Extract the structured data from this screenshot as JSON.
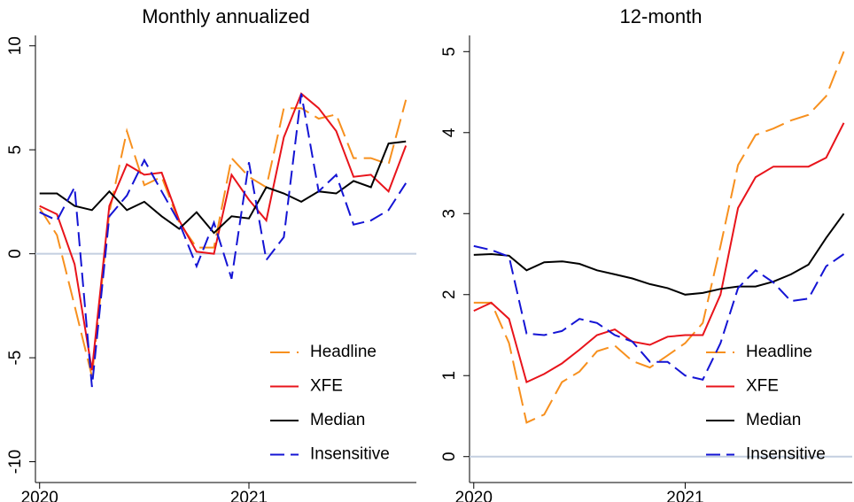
{
  "chart_data": [
    {
      "type": "line",
      "title": "Monthly annualized",
      "x": [
        2020,
        2020.083,
        2020.167,
        2020.25,
        2020.333,
        2020.417,
        2020.5,
        2020.583,
        2020.667,
        2020.75,
        2020.833,
        2020.917,
        2021,
        2021.083,
        2021.167,
        2021.25,
        2021.333,
        2021.417,
        2021.5,
        2021.583,
        2021.667,
        2021.75
      ],
      "xlim": [
        2019.98,
        2021.8
      ],
      "xticks": [
        2020,
        2021
      ],
      "ylim": [
        -11,
        10.5
      ],
      "yticks": [
        -10,
        -5,
        0,
        5,
        10
      ],
      "zero_line": true,
      "legend": "lower right",
      "series": [
        {
          "name": "Headline",
          "color": "#f7901e",
          "style": "dashed",
          "values": [
            2.2,
            0.9,
            -2.5,
            -5.9,
            2.0,
            5.9,
            3.3,
            3.7,
            1.5,
            0.3,
            0.3,
            4.6,
            3.7,
            3.2,
            7.0,
            7.0,
            6.5,
            6.7,
            4.6,
            4.6,
            4.3,
            7.4
          ]
        },
        {
          "name": "XFE",
          "color": "#e8141b",
          "style": "solid",
          "values": [
            2.3,
            1.9,
            -0.5,
            -5.6,
            2.3,
            4.3,
            3.8,
            3.9,
            1.6,
            0.1,
            0.0,
            3.8,
            2.6,
            1.6,
            5.6,
            7.7,
            7.0,
            5.9,
            3.7,
            3.8,
            3.0,
            5.2
          ]
        },
        {
          "name": "Median",
          "color": "#000000",
          "style": "solid",
          "values": [
            2.9,
            2.9,
            2.3,
            2.1,
            3.0,
            2.1,
            2.5,
            1.8,
            1.2,
            2.0,
            1.0,
            1.8,
            1.7,
            3.2,
            2.9,
            2.5,
            3.0,
            2.9,
            3.5,
            3.2,
            5.3,
            5.4
          ]
        },
        {
          "name": "Insensitive",
          "color": "#1414d4",
          "style": "dashed",
          "values": [
            2.0,
            1.6,
            3.2,
            -6.4,
            1.8,
            2.8,
            4.5,
            3.0,
            1.5,
            -0.6,
            1.5,
            -1.2,
            4.4,
            -0.3,
            0.8,
            7.7,
            3.0,
            3.8,
            1.4,
            1.6,
            2.1,
            3.4
          ]
        }
      ]
    },
    {
      "type": "line",
      "title": "12-month",
      "x": [
        2020,
        2020.083,
        2020.167,
        2020.25,
        2020.333,
        2020.417,
        2020.5,
        2020.583,
        2020.667,
        2020.75,
        2020.833,
        2020.917,
        2021,
        2021.083,
        2021.167,
        2021.25,
        2021.333,
        2021.417,
        2021.5,
        2021.583,
        2021.667,
        2021.75
      ],
      "xlim": [
        2019.98,
        2021.79
      ],
      "xticks": [
        2020,
        2021
      ],
      "ylim": [
        -0.32,
        5.2
      ],
      "yticks": [
        0,
        1,
        2,
        3,
        4,
        5
      ],
      "zero_line": true,
      "legend": "lower right",
      "series": [
        {
          "name": "Headline",
          "color": "#f7901e",
          "style": "dashed",
          "values": [
            1.9,
            1.9,
            1.4,
            0.42,
            0.52,
            0.92,
            1.05,
            1.3,
            1.37,
            1.18,
            1.1,
            1.25,
            1.4,
            1.65,
            2.6,
            3.6,
            3.97,
            4.05,
            4.15,
            4.22,
            4.45,
            5.0
          ]
        },
        {
          "name": "XFE",
          "color": "#e8141b",
          "style": "solid",
          "values": [
            1.8,
            1.9,
            1.7,
            0.92,
            1.02,
            1.15,
            1.32,
            1.5,
            1.57,
            1.42,
            1.38,
            1.48,
            1.5,
            1.5,
            2.0,
            3.07,
            3.45,
            3.58,
            3.58,
            3.58,
            3.69,
            4.12
          ]
        },
        {
          "name": "Median",
          "color": "#000000",
          "style": "solid",
          "values": [
            2.49,
            2.5,
            2.48,
            2.3,
            2.4,
            2.41,
            2.38,
            2.3,
            2.25,
            2.2,
            2.13,
            2.08,
            2.0,
            2.02,
            2.07,
            2.1,
            2.1,
            2.16,
            2.25,
            2.37,
            2.7,
            3.0
          ]
        },
        {
          "name": "Insensitive",
          "color": "#1414d4",
          "style": "dashed",
          "values": [
            2.6,
            2.55,
            2.47,
            1.52,
            1.5,
            1.55,
            1.7,
            1.65,
            1.5,
            1.42,
            1.17,
            1.17,
            1.0,
            0.95,
            1.4,
            2.08,
            2.3,
            2.15,
            1.92,
            1.95,
            2.35,
            2.5
          ]
        }
      ]
    }
  ]
}
